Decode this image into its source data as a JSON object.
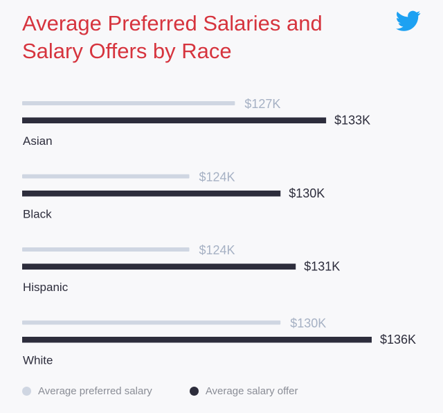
{
  "title": "Average Preferred Salaries and Salary Offers by Race",
  "icon": "twitter-bird-icon",
  "colors": {
    "title": "#d6343e",
    "preferred": "#cfd6e2",
    "offer": "#2d2d3c",
    "preferred_label": "#a6b1c4",
    "offer_label": "#2d2d3c",
    "category_label": "#2d2d3c",
    "twitter": "#1da1f2"
  },
  "chart_data": {
    "type": "bar",
    "orientation": "horizontal",
    "categories": [
      "Asian",
      "Black",
      "Hispanic",
      "White"
    ],
    "series": [
      {
        "name": "Average preferred salary",
        "values": [
          127,
          124,
          124,
          130
        ],
        "labels": [
          "$127K",
          "$124K",
          "$124K",
          "$130K"
        ]
      },
      {
        "name": "Average salary offer",
        "values": [
          133,
          130,
          131,
          136
        ],
        "labels": [
          "$133K",
          "$130K",
          "$131K",
          "$136K"
        ]
      }
    ],
    "xlim": [
      113,
      136
    ],
    "grid": false,
    "axes_visible": false,
    "legend_position": "bottom-left"
  },
  "legend": [
    {
      "label": "Average preferred salary",
      "color": "#cfd6e2"
    },
    {
      "label": "Average salary offer",
      "color": "#2d2d3c"
    }
  ]
}
